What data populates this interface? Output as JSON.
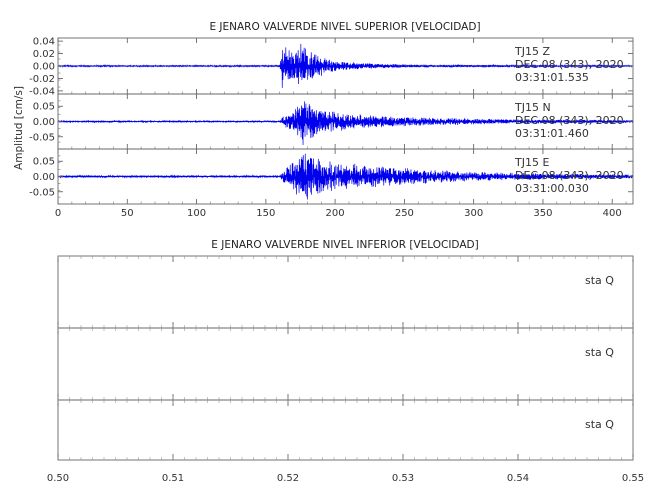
{
  "chart_data": [
    {
      "type": "line",
      "title": "E JENARO VALVERDE NIVEL SUPERIOR [VELOCIDAD]",
      "ylabel": "Amplitud [cm/s]",
      "xlim": [
        0,
        415
      ],
      "x_ticks": [
        0,
        50,
        100,
        150,
        200,
        250,
        300,
        350,
        400
      ],
      "color": "#0000ee",
      "panels": [
        {
          "name": "Z",
          "ylim": [
            -0.045,
            0.045
          ],
          "y_ticks": [
            "0.04",
            "0.02",
            "0.00",
            "-0.02",
            "-0.04"
          ],
          "y_values": [
            0.04,
            0.02,
            0.0,
            -0.02,
            -0.04
          ],
          "annotation": [
            "TJ15   Z",
            "DEC 08 (343), 2020",
            "03:31:01.535"
          ],
          "envelope": [
            {
              "t": 0,
              "a": 0.001
            },
            {
              "t": 160,
              "a": 0.001
            },
            {
              "t": 162,
              "a": 0.042
            },
            {
              "t": 170,
              "a": 0.02
            },
            {
              "t": 175,
              "a": 0.044
            },
            {
              "t": 185,
              "a": 0.02
            },
            {
              "t": 200,
              "a": 0.008
            },
            {
              "t": 230,
              "a": 0.004
            },
            {
              "t": 260,
              "a": 0.002
            },
            {
              "t": 415,
              "a": 0.001
            }
          ]
        },
        {
          "name": "N",
          "ylim": [
            -0.09,
            0.09
          ],
          "y_ticks": [
            "0.05",
            "0.00",
            "-0.05"
          ],
          "y_values": [
            0.05,
            0.0,
            -0.05
          ],
          "annotation": [
            "TJ15   N",
            "DEC 08 (343), 2020",
            "03:31:01.460"
          ],
          "envelope": [
            {
              "t": 0,
              "a": 0.002
            },
            {
              "t": 160,
              "a": 0.002
            },
            {
              "t": 163,
              "a": 0.02
            },
            {
              "t": 170,
              "a": 0.03
            },
            {
              "t": 176,
              "a": 0.08
            },
            {
              "t": 190,
              "a": 0.045
            },
            {
              "t": 210,
              "a": 0.025
            },
            {
              "t": 240,
              "a": 0.018
            },
            {
              "t": 280,
              "a": 0.012
            },
            {
              "t": 320,
              "a": 0.008
            },
            {
              "t": 415,
              "a": 0.004
            }
          ]
        },
        {
          "name": "E",
          "ylim": [
            -0.09,
            0.09
          ],
          "y_ticks": [
            "0.05",
            "0.00",
            "-0.05"
          ],
          "y_values": [
            0.05,
            0.0,
            -0.05
          ],
          "annotation": [
            "TJ15   E",
            "DEC 08 (343), 2020",
            "03:31:00.030"
          ],
          "envelope": [
            {
              "t": 0,
              "a": 0.003
            },
            {
              "t": 160,
              "a": 0.003
            },
            {
              "t": 163,
              "a": 0.02
            },
            {
              "t": 172,
              "a": 0.06
            },
            {
              "t": 178,
              "a": 0.085
            },
            {
              "t": 190,
              "a": 0.06
            },
            {
              "t": 205,
              "a": 0.045
            },
            {
              "t": 230,
              "a": 0.035
            },
            {
              "t": 260,
              "a": 0.025
            },
            {
              "t": 300,
              "a": 0.015
            },
            {
              "t": 350,
              "a": 0.01
            },
            {
              "t": 415,
              "a": 0.006
            }
          ]
        }
      ]
    },
    {
      "type": "line",
      "title": "E JENARO VALVERDE NIVEL INFERIOR [VELOCIDAD]",
      "xlim": [
        0.5,
        0.55
      ],
      "x_ticks": [
        0.5,
        0.51,
        0.52,
        0.53,
        0.54,
        0.55
      ],
      "x_tick_labels": [
        "0.50",
        "0.51",
        "0.52",
        "0.53",
        "0.54",
        "0.55"
      ],
      "panels": [
        {
          "annotation": "sta   Q"
        },
        {
          "annotation": "sta   Q"
        },
        {
          "annotation": "sta   Q"
        }
      ]
    }
  ]
}
